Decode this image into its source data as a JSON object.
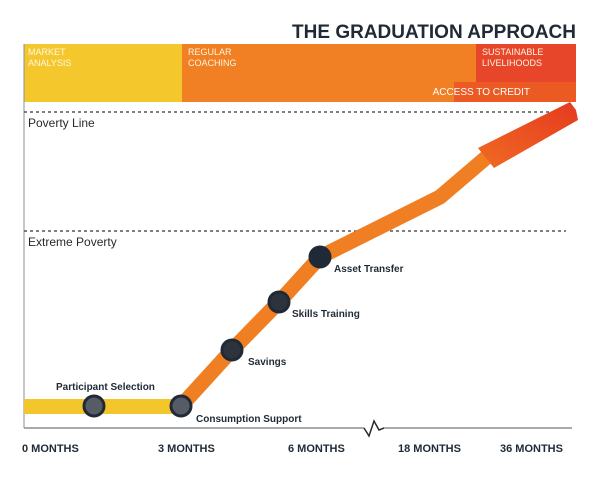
{
  "title": "THE GRADUATION APPROACH",
  "bands": [
    {
      "label_lines": [
        "MARKET",
        "ANALYSIS"
      ],
      "color": "#f2c42a"
    },
    {
      "label_lines": [
        "REGULAR",
        "COACHING"
      ],
      "color": "#f07e23"
    },
    {
      "label_lines": [
        "SUSTAINABLE",
        "LIVELIHOODS"
      ],
      "color": "#e94423"
    }
  ],
  "access_to_credit": "ACCESS TO CREDIT",
  "thresholds": {
    "poverty_line": "Poverty Line",
    "extreme_poverty": "Extreme Poverty"
  },
  "axis_ticks": [
    "0 MONTHS",
    "3 MONTHS",
    "6 MONTHS",
    "18 MONTHS",
    "36 MONTHS"
  ],
  "steps": [
    "Participant Selection",
    "Consumption Support",
    "Savings",
    "Skills  Training",
    "Asset Transfer"
  ],
  "colors": {
    "yellow": "#f2c42a",
    "orange": "#f07e23",
    "red": "#e94423",
    "marker": "#1f2a36",
    "marker_grey": "#4a4f58"
  }
}
